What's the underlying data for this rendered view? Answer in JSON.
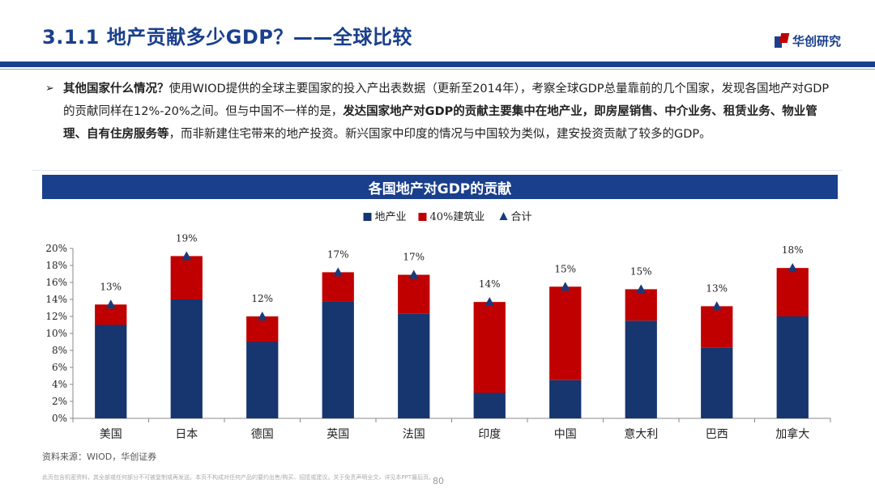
{
  "header": {
    "title": "3.1.1 地产贡献多少GDP？——全球比较",
    "logo_text": "华创研究"
  },
  "bullet": {
    "lead_bold": "其他国家什么情况？",
    "part1": "使用WIOD提供的全球主要国家的投入产出表数据（更新至2014年），考察全球GDP总量靠前的几个国家，发现各国地产对GDP的贡献同样在12%-20%之间。但与中国不一样的是，",
    "emph_bold": "发达国家地产对GDP的贡献主要集中在地产业，即房屋销售、中介业务、租赁业务、物业管理、自有住房服务等",
    "part2": "，而非新建住宅带来的地产投资。新兴国家中印度的情况与中国较为类似，建安投资贡献了较多的GDP。"
  },
  "chart_header": "各国地产对GDP的贡献",
  "source": "资料来源：WIOD，华创证券",
  "disclaimer": "此页包含机密资料，其全部或任何部分不可被复制或再发送。本页不构成对任何产品的要约出售/购买、招揽或建议。关于免责声明全文，详见本PPT最后页。",
  "page_number": "80",
  "colors": {
    "navy": "#1a3f8c",
    "bar_blue": "#17356f",
    "bar_red": "#c00000",
    "marker": "#1a3a7a"
  },
  "chart_data": {
    "type": "bar",
    "stacked": true,
    "title": "各国地产对GDP的贡献",
    "categories": [
      "美国",
      "日本",
      "德国",
      "英国",
      "法国",
      "印度",
      "中国",
      "意大利",
      "巴西",
      "加拿大"
    ],
    "series": [
      {
        "name": "地产业",
        "values": [
          11.0,
          14.0,
          9.0,
          13.8,
          12.3,
          3.0,
          4.5,
          11.5,
          8.3,
          12.0
        ],
        "color": "#17356f"
      },
      {
        "name": "40%建筑业",
        "values": [
          2.4,
          5.1,
          3.0,
          3.4,
          4.6,
          10.7,
          11.0,
          3.7,
          4.9,
          5.7
        ],
        "color": "#c00000"
      }
    ],
    "total_series": {
      "name": "合计",
      "values": [
        13.4,
        19.1,
        12.0,
        17.2,
        16.9,
        13.7,
        15.5,
        15.2,
        13.2,
        17.7
      ],
      "marker": "triangle"
    },
    "total_labels": [
      "13%",
      "19%",
      "12%",
      "17%",
      "17%",
      "14%",
      "15%",
      "15%",
      "13%",
      "18%"
    ],
    "yticks": [
      "0%",
      "2%",
      "4%",
      "6%",
      "8%",
      "10%",
      "12%",
      "14%",
      "16%",
      "18%",
      "20%"
    ],
    "ylim": [
      0,
      20
    ],
    "xlabel": "",
    "ylabel": "",
    "legend_position": "top-center",
    "grid": false
  }
}
